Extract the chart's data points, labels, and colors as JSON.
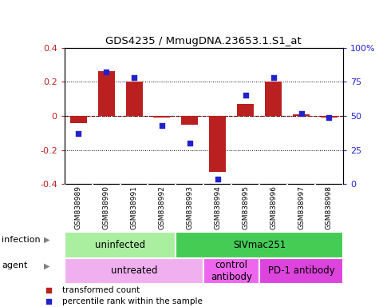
{
  "title": "GDS4235 / MmugDNA.23653.1.S1_at",
  "samples": [
    "GSM838989",
    "GSM838990",
    "GSM838991",
    "GSM838992",
    "GSM838993",
    "GSM838994",
    "GSM838995",
    "GSM838996",
    "GSM838997",
    "GSM838998"
  ],
  "transformed_count": [
    -0.04,
    0.26,
    0.2,
    -0.01,
    -0.05,
    -0.33,
    0.07,
    0.2,
    0.01,
    -0.01
  ],
  "percentile_rank": [
    37,
    82,
    78,
    43,
    30,
    4,
    65,
    78,
    52,
    49
  ],
  "ylim": [
    -0.4,
    0.4
  ],
  "yticks": [
    -0.4,
    -0.2,
    0.0,
    0.2,
    0.4
  ],
  "yticklabels": [
    "-0.4",
    "-0.2",
    "0",
    "0.2",
    "0.4"
  ],
  "right_ylim": [
    0,
    100
  ],
  "right_yticks": [
    0,
    25,
    50,
    75,
    100
  ],
  "right_yticklabels": [
    "0",
    "25",
    "50",
    "75",
    "100%"
  ],
  "bar_color": "#bb2020",
  "dot_color": "#2222cc",
  "infection_groups": [
    {
      "label": "uninfected",
      "start": 0,
      "end": 4,
      "color": "#aaeea0"
    },
    {
      "label": "SIVmac251",
      "start": 4,
      "end": 10,
      "color": "#44cc55"
    }
  ],
  "agent_groups": [
    {
      "label": "untreated",
      "start": 0,
      "end": 5,
      "color": "#f0b0f0"
    },
    {
      "label": "control\nantibody",
      "start": 5,
      "end": 7,
      "color": "#ee66ee"
    },
    {
      "label": "PD-1 antibody",
      "start": 7,
      "end": 10,
      "color": "#dd44dd"
    }
  ],
  "sample_bg_color": "#cccccc",
  "legend_bar_color": "#bb2020",
  "legend_dot_color": "#2222cc",
  "background_color": "#ffffff"
}
